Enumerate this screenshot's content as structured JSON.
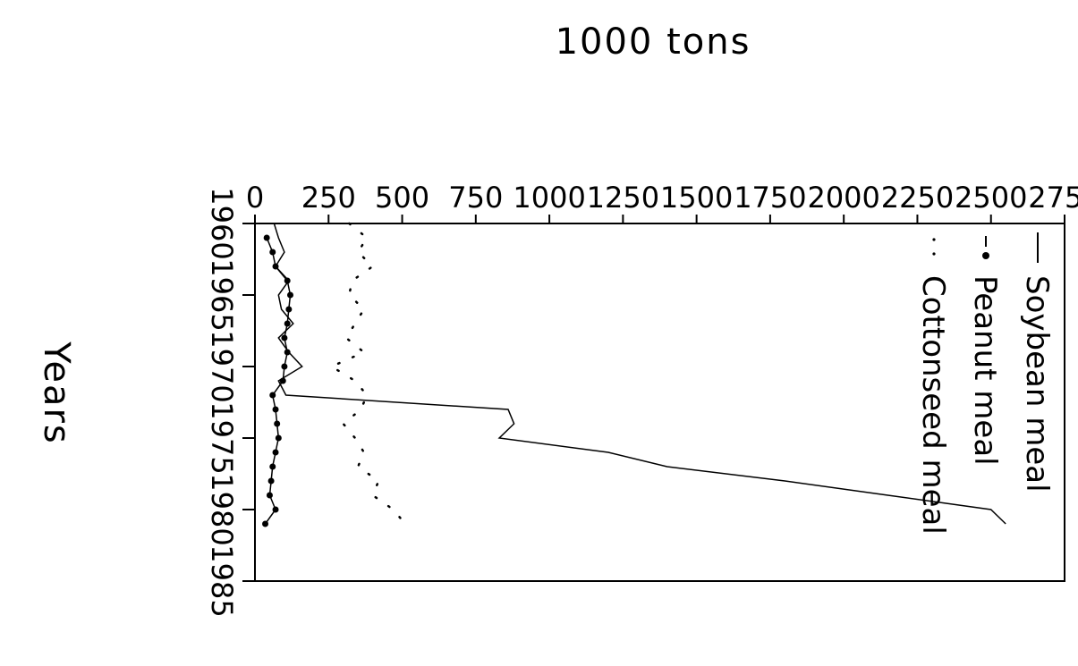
{
  "chart_data": {
    "type": "line",
    "xlabel": "Years",
    "ylabel": "1000 tons",
    "x_ticks": [
      "1960",
      "1965",
      "1970",
      "1975",
      "1980",
      "1985"
    ],
    "y_ticks": [
      "0",
      "250",
      "500",
      "750",
      "1000",
      "1250",
      "1500",
      "1750",
      "2000",
      "2250",
      "2500",
      "2750"
    ],
    "xlim": [
      1960,
      1985
    ],
    "ylim": [
      0,
      2750
    ],
    "grid": false,
    "legend_position": "top-right",
    "legend": [
      {
        "label": "Soybean meal",
        "marker": "—"
      },
      {
        "label": "Peanut meal",
        "marker": "-•"
      },
      {
        "label": "Cottonseed meal",
        "marker": ". ."
      }
    ],
    "series": [
      {
        "name": "Soybean meal",
        "style": "solid",
        "x": [
          1960,
          1961,
          1962,
          1963,
          1964,
          1965,
          1966,
          1967,
          1968,
          1969,
          1970,
          1971,
          1972,
          1973,
          1974,
          1975,
          1976,
          1977,
          1978,
          1979,
          1980,
          1981
        ],
        "y": [
          65,
          80,
          100,
          70,
          115,
          80,
          90,
          130,
          80,
          115,
          160,
          80,
          105,
          860,
          880,
          830,
          1200,
          1400,
          1800,
          2150,
          2500,
          2550
        ]
      },
      {
        "name": "Peanut meal",
        "style": "dot-markers",
        "x": [
          1961,
          1962,
          1963,
          1964,
          1965,
          1966,
          1967,
          1968,
          1969,
          1970,
          1971,
          1972,
          1973,
          1974,
          1975,
          1976,
          1977,
          1978,
          1979,
          1980,
          1981
        ],
        "y": [
          40,
          60,
          70,
          110,
          120,
          115,
          110,
          100,
          110,
          100,
          95,
          60,
          70,
          75,
          80,
          70,
          60,
          55,
          50,
          70,
          35
        ]
      },
      {
        "name": "Cottonseed meal",
        "style": "dotted",
        "x": [
          1960,
          1961,
          1962,
          1963,
          1964,
          1965,
          1966,
          1967,
          1968,
          1969,
          1970,
          1971,
          1972,
          1973,
          1974,
          1975,
          1976,
          1977,
          1978,
          1979,
          1980,
          1981
        ],
        "y": [
          320,
          380,
          350,
          400,
          330,
          320,
          370,
          340,
          310,
          370,
          260,
          340,
          380,
          360,
          300,
          340,
          370,
          350,
          420,
          400,
          470,
          510
        ]
      }
    ]
  }
}
